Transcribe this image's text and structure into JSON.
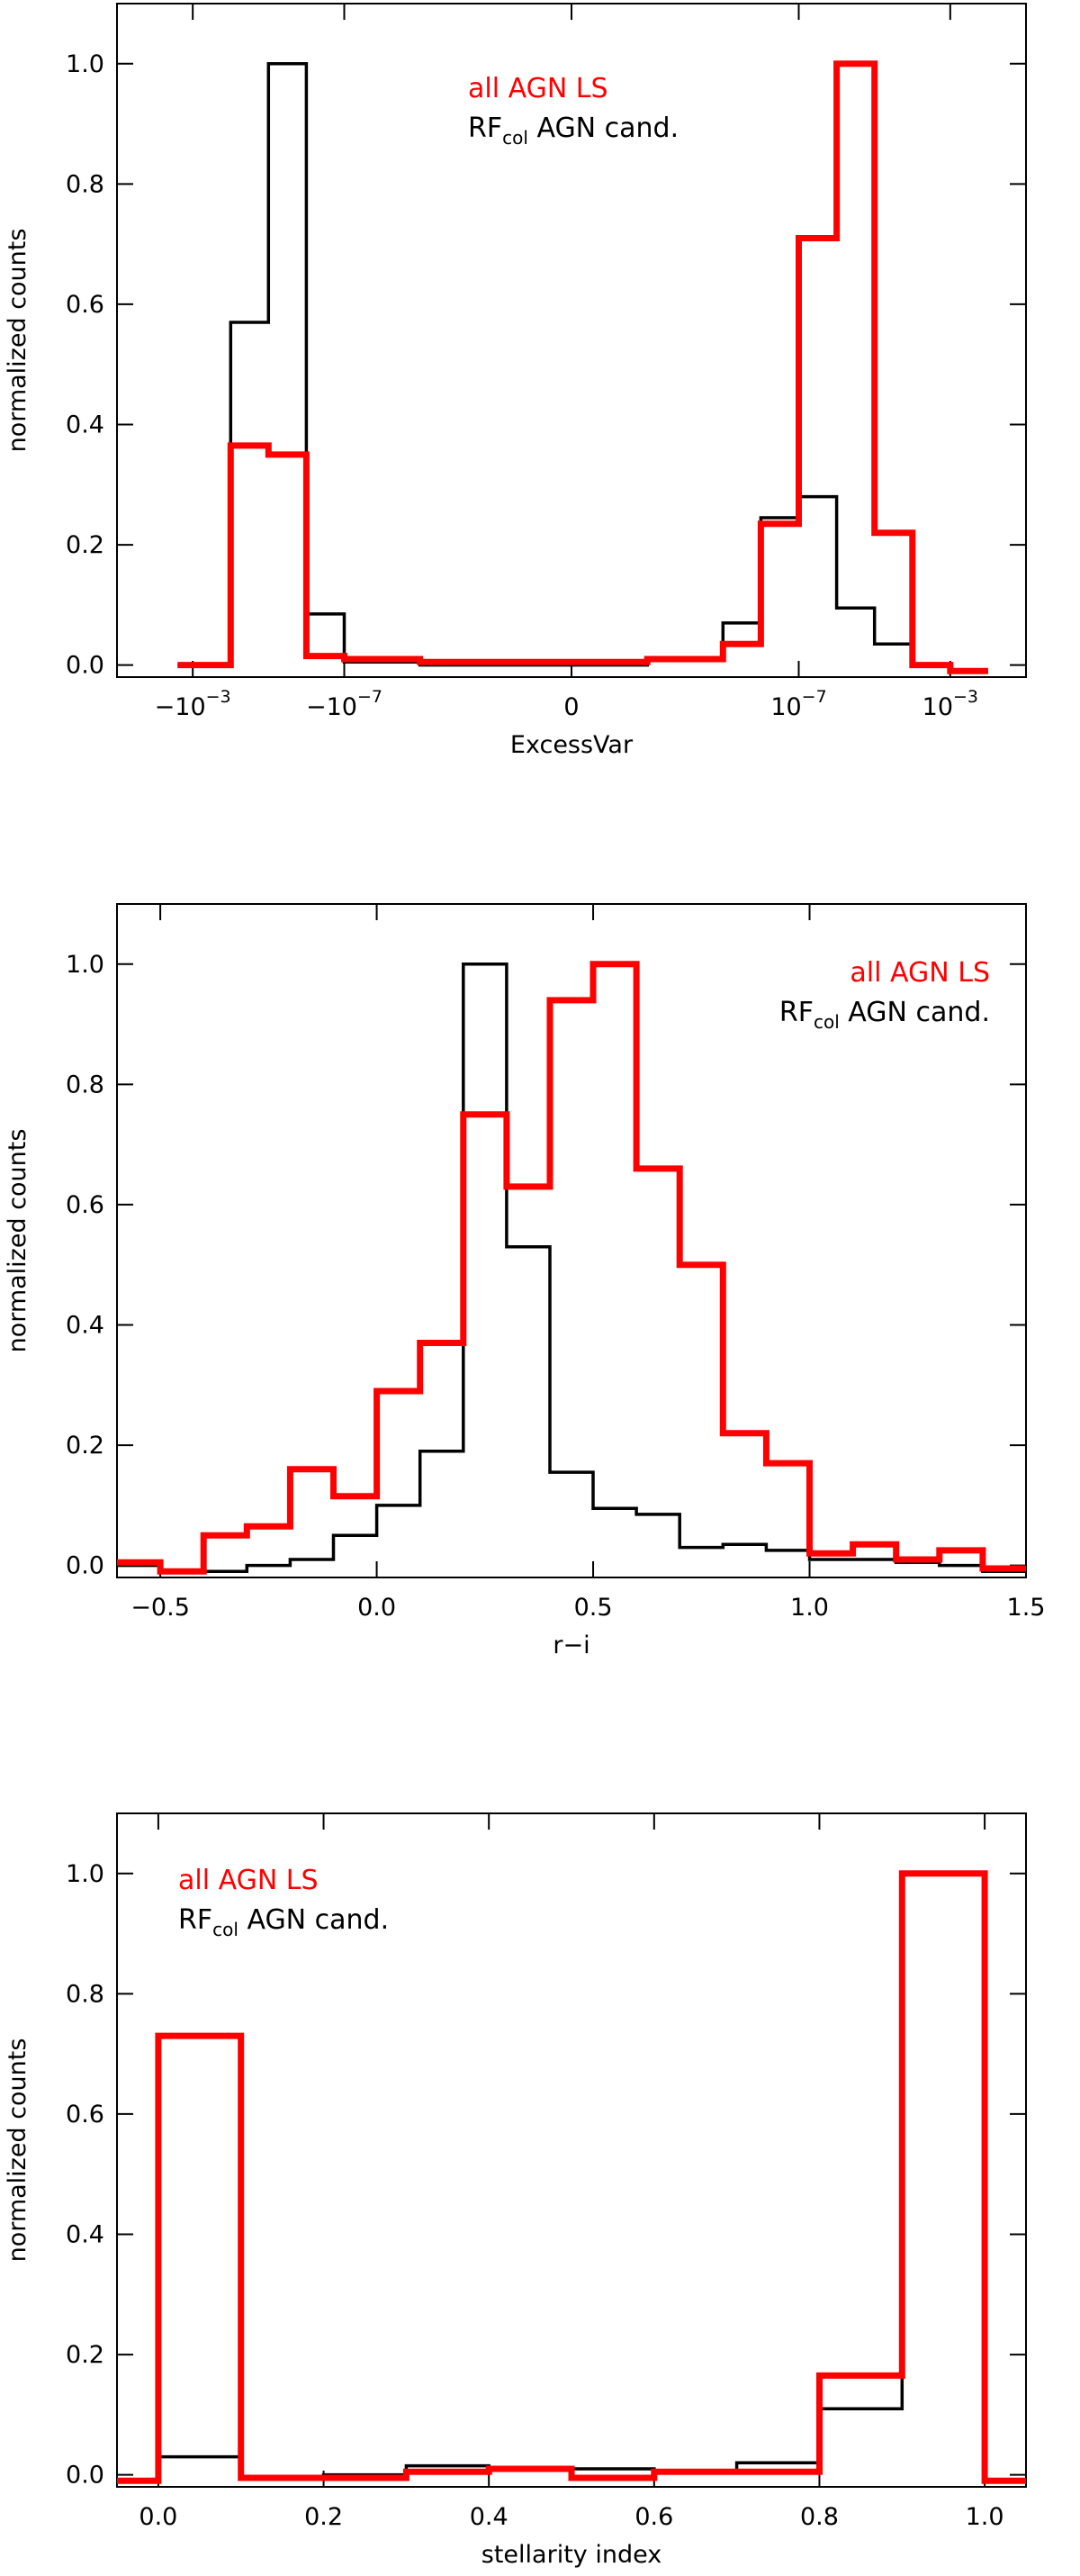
{
  "chart_data": [
    {
      "type": "histogram",
      "xlabel": "ExcessVar",
      "ylabel": "normalized counts",
      "xlim": [
        -6,
        6
      ],
      "ylim": [
        -0.02,
        1.1
      ],
      "x_scale": "symlog",
      "x_ticks": [
        {
          "value": -5,
          "base": "−10",
          "exp": "−3"
        },
        {
          "value": -3,
          "base": "−10",
          "exp": "−7"
        },
        {
          "value": 0,
          "base": "0",
          "exp": ""
        },
        {
          "value": 3,
          "base": "10",
          "exp": "−7"
        },
        {
          "value": 5,
          "base": "10",
          "exp": "−3"
        }
      ],
      "y_ticks": [
        "0.0",
        "0.2",
        "0.4",
        "0.6",
        "0.8",
        "1.0"
      ],
      "y_tick_values": [
        0,
        0.2,
        0.4,
        0.6,
        0.8,
        1.0
      ],
      "legend": {
        "position": "top-center",
        "entries": [
          {
            "label": "all AGN LS",
            "main": "all AGN LS",
            "sub": "",
            "rest": "",
            "color": "#ff0000"
          },
          {
            "label": "RFcol AGN cand.",
            "main": "RF",
            "sub": "col",
            "rest": " AGN cand.",
            "color": "#000000"
          }
        ]
      },
      "series": [
        {
          "name": "all AGN LS",
          "color": "#ff0000",
          "edges": [
            -5.2,
            -4.5,
            -4.0,
            -3.5,
            -3.0,
            -2.0,
            -1.0,
            0.0,
            1.0,
            2.0,
            2.5,
            3.0,
            3.5,
            4.0,
            4.5,
            5.0,
            5.5
          ],
          "counts": [
            0.0,
            0.365,
            0.35,
            0.015,
            0.01,
            0.005,
            0.005,
            0.005,
            0.01,
            0.035,
            0.235,
            0.71,
            1.0,
            0.22,
            0.0,
            -0.01
          ]
        },
        {
          "name": "RFcol AGN cand.",
          "color": "#000000",
          "edges": [
            -5.2,
            -4.5,
            -4.0,
            -3.5,
            -3.0,
            -2.0,
            -1.0,
            0.0,
            1.0,
            2.0,
            2.5,
            3.0,
            3.5,
            4.0,
            4.5,
            5.0,
            5.5
          ],
          "counts": [
            0.0,
            0.57,
            1.0,
            0.085,
            0.005,
            0.0,
            0.0,
            0.0,
            0.01,
            0.07,
            0.245,
            0.28,
            0.095,
            0.035,
            0.0,
            -0.01
          ]
        }
      ]
    },
    {
      "type": "histogram",
      "xlabel": "r−i",
      "ylabel": "normalized counts",
      "xlim": [
        -0.6,
        1.5
      ],
      "ylim": [
        -0.02,
        1.1
      ],
      "x_ticks": [
        {
          "value": -0.5,
          "base": "−0.5",
          "exp": ""
        },
        {
          "value": 0.0,
          "base": "0.0",
          "exp": ""
        },
        {
          "value": 0.5,
          "base": "0.5",
          "exp": ""
        },
        {
          "value": 1.0,
          "base": "1.0",
          "exp": ""
        },
        {
          "value": 1.5,
          "base": "1.5",
          "exp": ""
        }
      ],
      "y_ticks": [
        "0.0",
        "0.2",
        "0.4",
        "0.6",
        "0.8",
        "1.0"
      ],
      "y_tick_values": [
        0,
        0.2,
        0.4,
        0.6,
        0.8,
        1.0
      ],
      "legend": {
        "position": "top-right",
        "entries": [
          {
            "label": "all AGN LS",
            "main": "all AGN LS",
            "sub": "",
            "rest": "",
            "color": "#ff0000"
          },
          {
            "label": "RFcol AGN cand.",
            "main": "RF",
            "sub": "col",
            "rest": " AGN cand.",
            "color": "#000000"
          }
        ]
      },
      "series": [
        {
          "name": "all AGN LS",
          "color": "#ff0000",
          "edges": [
            -0.6,
            -0.5,
            -0.4,
            -0.3,
            -0.2,
            -0.1,
            0.0,
            0.1,
            0.2,
            0.3,
            0.4,
            0.5,
            0.6,
            0.7,
            0.8,
            0.9,
            1.0,
            1.1,
            1.2,
            1.3,
            1.4,
            1.5
          ],
          "counts": [
            0.005,
            -0.01,
            0.05,
            0.065,
            0.16,
            0.115,
            0.29,
            0.37,
            0.75,
            0.63,
            0.94,
            1.0,
            0.66,
            0.5,
            0.22,
            0.17,
            0.02,
            0.035,
            0.01,
            0.025,
            -0.005
          ]
        },
        {
          "name": "RFcol AGN cand.",
          "color": "#000000",
          "edges": [
            -0.6,
            -0.5,
            -0.4,
            -0.3,
            -0.2,
            -0.1,
            0.0,
            0.1,
            0.2,
            0.3,
            0.4,
            0.5,
            0.6,
            0.7,
            0.8,
            0.9,
            1.0,
            1.1,
            1.2,
            1.3,
            1.4,
            1.5
          ],
          "counts": [
            0.0,
            -0.01,
            -0.01,
            0.0,
            0.01,
            0.05,
            0.1,
            0.19,
            1.0,
            0.53,
            0.155,
            0.095,
            0.085,
            0.03,
            0.035,
            0.025,
            0.01,
            0.01,
            0.005,
            0.0,
            -0.01
          ]
        }
      ]
    },
    {
      "type": "histogram",
      "xlabel": "stellarity index",
      "ylabel": "normalized counts",
      "xlim": [
        -0.05,
        1.05
      ],
      "ylim": [
        -0.02,
        1.1
      ],
      "x_ticks": [
        {
          "value": 0.0,
          "base": "0.0",
          "exp": ""
        },
        {
          "value": 0.2,
          "base": "0.2",
          "exp": ""
        },
        {
          "value": 0.4,
          "base": "0.4",
          "exp": ""
        },
        {
          "value": 0.6,
          "base": "0.6",
          "exp": ""
        },
        {
          "value": 0.8,
          "base": "0.8",
          "exp": ""
        },
        {
          "value": 1.0,
          "base": "1.0",
          "exp": ""
        }
      ],
      "y_ticks": [
        "0.0",
        "0.2",
        "0.4",
        "0.6",
        "0.8",
        "1.0"
      ],
      "y_tick_values": [
        0,
        0.2,
        0.4,
        0.6,
        0.8,
        1.0
      ],
      "legend": {
        "position": "top-left",
        "entries": [
          {
            "label": "all AGN LS",
            "main": "all AGN LS",
            "sub": "",
            "rest": "",
            "color": "#ff0000"
          },
          {
            "label": "RFcol AGN cand.",
            "main": "RF",
            "sub": "col",
            "rest": " AGN cand.",
            "color": "#000000"
          }
        ]
      },
      "series": [
        {
          "name": "all AGN LS",
          "color": "#ff0000",
          "edges": [
            -0.05,
            0.0,
            0.1,
            0.2,
            0.3,
            0.4,
            0.5,
            0.6,
            0.7,
            0.8,
            0.9,
            1.0,
            1.05
          ],
          "counts": [
            -0.01,
            0.73,
            -0.005,
            -0.005,
            0.005,
            0.01,
            -0.005,
            0.005,
            0.005,
            0.165,
            1.0,
            -0.01
          ]
        },
        {
          "name": "RFcol AGN cand.",
          "color": "#000000",
          "edges": [
            -0.05,
            0.0,
            0.1,
            0.2,
            0.3,
            0.4,
            0.5,
            0.6,
            0.7,
            0.8,
            0.9,
            1.0,
            1.05
          ],
          "counts": [
            -0.01,
            0.03,
            -0.005,
            0.0,
            0.015,
            0.01,
            0.01,
            0.005,
            0.02,
            0.11,
            1.0,
            -0.01
          ]
        }
      ]
    }
  ]
}
